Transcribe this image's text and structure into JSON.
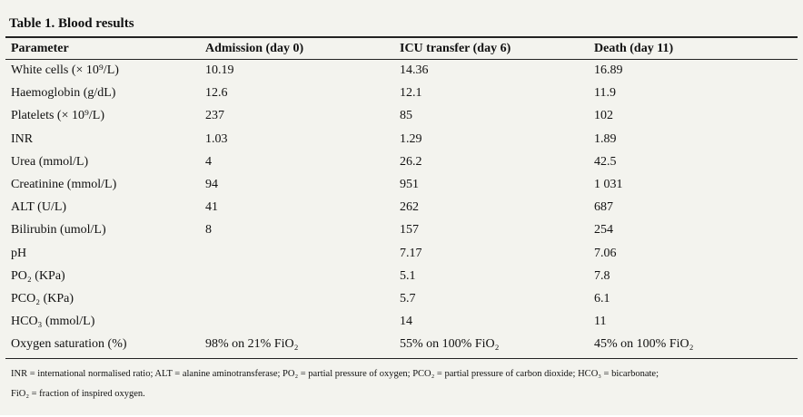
{
  "header": {
    "title": "Table 1. Blood results"
  },
  "table": {
    "columns": [
      "Parameter",
      "Admission (day 0)",
      "ICU transfer (day 6)",
      "Death (day 11)"
    ],
    "rows": [
      [
        "White cells (× 10⁹/L)",
        "10.19",
        "14.36",
        "16.89"
      ],
      [
        "Haemoglobin (g/dL)",
        "12.6",
        "12.1",
        "11.9"
      ],
      [
        "Platelets (× 10⁹/L)",
        "237",
        "85",
        "102"
      ],
      [
        "INR",
        "1.03",
        "1.29",
        "1.89"
      ],
      [
        "Urea (mmol/L)",
        "4",
        "26.2",
        "42.5"
      ],
      [
        "Creatinine (mmol/L)",
        "94",
        "951",
        "1 031"
      ],
      [
        "ALT (U/L)",
        "41",
        "262",
        "687"
      ],
      [
        "Bilirubin (umol/L)",
        "8",
        "157",
        "254"
      ],
      [
        "pH",
        null,
        "7.17",
        "7.06"
      ],
      [
        "PO₂ (KPa)",
        null,
        "5.1",
        "7.8"
      ],
      [
        "PCO₂ (KPa)",
        null,
        "5.7",
        "6.1"
      ],
      [
        "HCO₃ (mmol/L)",
        null,
        "14",
        "11"
      ],
      [
        "Oxygen saturation (%)",
        "98% on 21% FiO₂",
        "55% on 100% FiO₂",
        "45% on 100% FiO₂"
      ]
    ]
  },
  "footnote": {
    "lines": [
      "INR = international normalised ratio; ALT = alanine aminotransferase; PO₂ = partial pressure of oxygen; PCO₂ = partial pressure of carbon dioxide; HCO₃ = bicarbonate;",
      "FiO₂ = fraction of inspired oxygen."
    ]
  }
}
